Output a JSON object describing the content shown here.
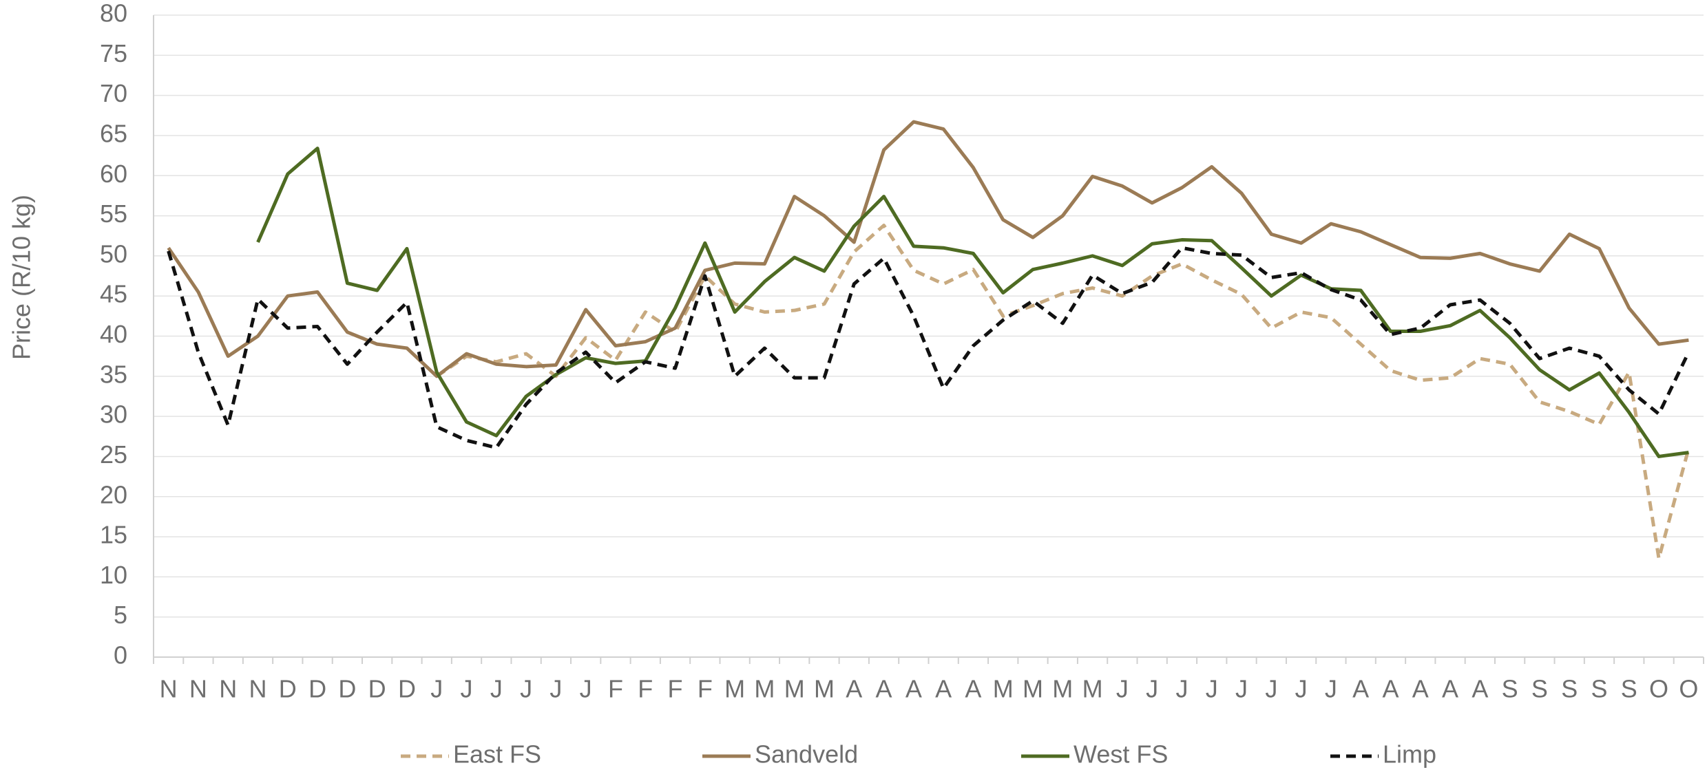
{
  "chart_data": {
    "type": "line",
    "y_label": "Price (R/10 kg)",
    "categories": [
      "N",
      "N",
      "N",
      "N",
      "D",
      "D",
      "D",
      "D",
      "D",
      "J",
      "J",
      "J",
      "J",
      "J",
      "J",
      "F",
      "F",
      "F",
      "F",
      "M",
      "M",
      "M",
      "M",
      "A",
      "A",
      "A",
      "A",
      "A",
      "M",
      "M",
      "M",
      "M",
      "J",
      "J",
      "J",
      "J",
      "J",
      "J",
      "J",
      "J",
      "A",
      "A",
      "A",
      "A",
      "A",
      "S",
      "S",
      "S",
      "S",
      "S",
      "O",
      "O"
    ],
    "series": [
      {
        "name": "East FS",
        "color": "#c8aa80",
        "style": "dashed",
        "values": [
          null,
          null,
          null,
          null,
          null,
          null,
          null,
          null,
          null,
          35,
          37.5,
          36.8,
          37.8,
          35,
          39.8,
          37,
          43,
          40.5,
          47.5,
          44,
          43,
          43.2,
          44,
          50.5,
          53.8,
          48.2,
          46.5,
          48.3,
          42.5,
          43.8,
          45.3,
          46,
          45,
          47.5,
          49,
          47,
          45.2,
          41,
          43,
          42.3,
          39,
          35.7,
          34.5,
          34.8,
          37.2,
          36.5,
          31.8,
          30.6,
          29,
          35.5,
          12.3,
          26
        ]
      },
      {
        "name": "Sandveld",
        "color": "#9b7b55",
        "style": "solid",
        "values": [
          51,
          45.5,
          37.5,
          40,
          45,
          45.5,
          40.5,
          39,
          38.5,
          35,
          37.8,
          36.5,
          36.2,
          36.4,
          43.3,
          38.8,
          39.3,
          41,
          48.2,
          49.1,
          49,
          57.4,
          55,
          51.7,
          63.2,
          66.7,
          65.8,
          61,
          54.5,
          52.3,
          55,
          59.9,
          58.7,
          56.6,
          58.5,
          61.1,
          57.8,
          52.7,
          51.6,
          54,
          53,
          51.4,
          49.8,
          49.7,
          50.3,
          49,
          48.1,
          52.7,
          50.9,
          43.5,
          39,
          39.5
        ]
      },
      {
        "name": "West FS",
        "color": "#4e6b22",
        "style": "solid",
        "values": [
          null,
          null,
          null,
          51.7,
          60.2,
          63.4,
          46.6,
          45.7,
          50.9,
          35.5,
          29.3,
          27.6,
          32.5,
          35.2,
          37.3,
          36.6,
          36.9,
          43.5,
          51.6,
          43,
          46.8,
          49.8,
          48.1,
          53.7,
          57.4,
          51.2,
          51,
          50.3,
          45.4,
          48.3,
          49.1,
          50,
          48.8,
          51.5,
          52,
          51.9,
          48.5,
          45,
          47.6,
          45.9,
          45.7,
          40.6,
          40.6,
          41.3,
          43.2,
          39.8,
          35.8,
          33.3,
          35.4,
          30.5,
          25,
          25.5
        ]
      },
      {
        "name": "Limp",
        "color": "#111111",
        "style": "dashed",
        "values": [
          50.6,
          38,
          28.9,
          44.6,
          41,
          41.2,
          36.5,
          40.5,
          44.2,
          28.7,
          27,
          26.1,
          31.5,
          35.4,
          38,
          34.2,
          36.8,
          36,
          47.5,
          35,
          38.5,
          34.8,
          34.8,
          46.5,
          49.7,
          42.5,
          33.5,
          38.8,
          42,
          44.4,
          41.6,
          47.6,
          45.3,
          46.7,
          51,
          50.3,
          50.1,
          47.3,
          47.9,
          45.8,
          44.5,
          40.2,
          41,
          43.9,
          44.5,
          41.6,
          37.2,
          38.5,
          37.5,
          33.3,
          30.3,
          38
        ]
      }
    ],
    "ylim": [
      0,
      80
    ],
    "yticks": [
      0,
      5,
      10,
      15,
      20,
      25,
      30,
      35,
      40,
      45,
      50,
      55,
      60,
      65,
      70,
      75,
      80
    ],
    "grid": true,
    "legend": "bottom"
  }
}
